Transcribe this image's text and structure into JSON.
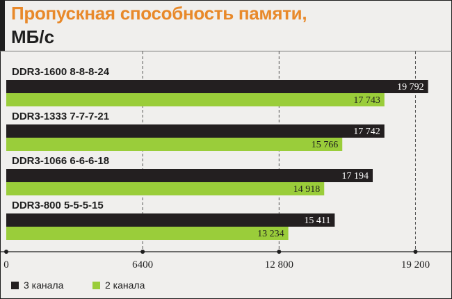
{
  "header": {
    "title_line1": "Пропускная способность памяти,",
    "title_line2": "МБ/с"
  },
  "legend": [
    {
      "label": "3 канала",
      "color": "#231f20"
    },
    {
      "label": "2 канала",
      "color": "#9acd3a"
    }
  ],
  "chart_data": {
    "type": "bar",
    "orientation": "horizontal",
    "title": "Пропускная способность памяти, МБ/с",
    "categories": [
      "DDR3-1600 8-8-8-24",
      "DDR3-1333 7-7-7-21",
      "DDR3-1066 6-6-6-18",
      "DDR3-800 5-5-5-15"
    ],
    "series": [
      {
        "name": "3 канала",
        "values": [
          19792,
          17742,
          17194,
          15411
        ],
        "labels": [
          "19 792",
          "17 742",
          "17 194",
          "15 411"
        ],
        "color": "#231f20"
      },
      {
        "name": "2 канала",
        "values": [
          17743,
          15766,
          14918,
          13234
        ],
        "labels": [
          "17 743",
          "15 766",
          "14 918",
          "13 234"
        ],
        "color": "#9acd3a"
      }
    ],
    "xlim": [
      0,
      20000
    ],
    "ticks": [
      0,
      6400,
      12800,
      19200
    ],
    "tick_labels": [
      "0",
      "6400",
      "12 800",
      "19 200"
    ],
    "grid": true,
    "legend_position": "bottom-left"
  }
}
